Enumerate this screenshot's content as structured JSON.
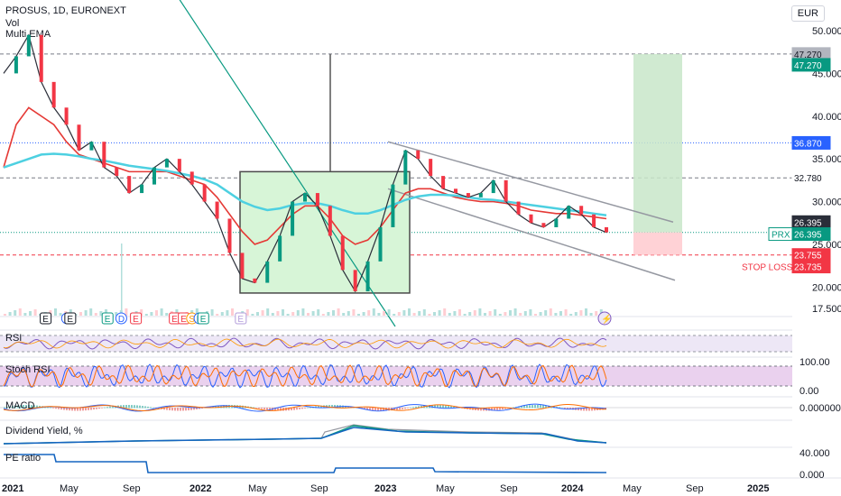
{
  "header": {
    "symbol_line": "PROSUS, 1D, EURONEXT",
    "vol_label": "Vol",
    "ema_label": "Multi EMA",
    "currency": "EUR"
  },
  "chart_data": {
    "type": "line",
    "x_ticks": [
      "2021",
      "May",
      "Sep",
      "2022",
      "May",
      "Sep",
      "2023",
      "May",
      "Sep",
      "2024",
      "May",
      "Sep",
      "2025"
    ],
    "price_ticks": [
      "50.000",
      "45.000",
      "40.000",
      "35.000",
      "30.000",
      "25.000",
      "20.000",
      "17.500"
    ],
    "ylim": [
      17.5,
      50
    ],
    "price_series": {
      "name": "",
      "values": [
        45.0,
        47.0,
        49.5,
        44.0,
        41.0,
        39.0,
        36.0,
        37.0,
        34.0,
        33.0,
        31.0,
        32.0,
        34.0,
        35.0,
        33.5,
        32.0,
        30.0,
        28.0,
        24.0,
        21.0,
        20.5,
        23.0,
        26.0,
        30.0,
        31.0,
        29.5,
        26.0,
        22.0,
        19.5,
        23.0,
        27.0,
        32.0,
        36.0,
        35.0,
        33.0,
        31.5,
        31.0,
        30.5,
        31.0,
        32.5,
        30.0,
        28.5,
        27.5,
        27.0,
        28.0,
        29.5,
        28.5,
        27.0,
        26.4
      ]
    },
    "ema_series": [
      {
        "color": "#e53935",
        "values": [
          34,
          39,
          41,
          40,
          39,
          37,
          35.5,
          35,
          34.5,
          34,
          33.5,
          33.5,
          33.5,
          33.5,
          33,
          32.5,
          32,
          30.5,
          28.5,
          26.5,
          25,
          25.5,
          27,
          28.5,
          29.5,
          29.5,
          28,
          26,
          25,
          25.5,
          27,
          29,
          31,
          31.5,
          31.5,
          31,
          30.5,
          30.2,
          30,
          30,
          29.8,
          29.5,
          29,
          28.8,
          28.6,
          28.6,
          28.4,
          28.2,
          28
        ]
      },
      {
        "color": "#4dd0e1",
        "values": [
          34,
          34.5,
          35,
          35.5,
          35.6,
          35.5,
          35.3,
          35,
          34.8,
          34.5,
          34.2,
          34,
          33.8,
          33.6,
          33.3,
          33,
          32.6,
          32,
          31,
          30,
          29.4,
          29,
          29.2,
          29.6,
          29.8,
          29.8,
          29.5,
          29,
          28.6,
          28.6,
          29,
          29.6,
          30.2,
          30.6,
          30.8,
          30.8,
          30.7,
          30.5,
          30.3,
          30.2,
          30,
          29.8,
          29.6,
          29.4,
          29.2,
          29,
          28.8,
          28.6,
          28.4
        ]
      }
    ],
    "price_tags": [
      {
        "label": "47.270",
        "value": 47.27,
        "bg": "#b2b5be",
        "fg": "#131722"
      },
      {
        "label": "47.270",
        "value": 46.0,
        "bg": "#089981",
        "fg": "#ffffff"
      },
      {
        "label": "36.870",
        "value": 36.87,
        "bg": "#2962ff",
        "fg": "#ffffff"
      },
      {
        "label": "32.780",
        "value": 32.78,
        "bg": "#ffffff",
        "fg": "#131722"
      },
      {
        "label": "26.395",
        "value": 27.6,
        "bg": "#2a2e39",
        "fg": "#ffffff"
      },
      {
        "label": "26.395",
        "value": 26.2,
        "bg": "#089981",
        "fg": "#ffffff"
      },
      {
        "label": "23.755",
        "value": 23.755,
        "bg": "#f23645",
        "fg": "#ffffff"
      },
      {
        "label": "23.735",
        "value": 22.4,
        "bg": "#f23645",
        "fg": "#ffffff"
      }
    ],
    "prx_label": "PRX",
    "stop_loss_label": "STOP LOSS",
    "levels": [
      {
        "value": 47.27,
        "color": "#787b86",
        "style": "dashed"
      },
      {
        "value": 36.87,
        "color": "#2962ff",
        "style": "dotted"
      },
      {
        "value": 32.78,
        "color": "#787b86",
        "style": "dashed"
      },
      {
        "value": 26.395,
        "color": "#089981",
        "style": "dotted"
      },
      {
        "value": 23.755,
        "color": "#f23645",
        "style": "dashed"
      }
    ],
    "event_markers": [
      {
        "label": "E",
        "color": "#131722",
        "tx": 0.205
      },
      {
        "label": "D",
        "color": "#2962ff",
        "tx": 0.319
      },
      {
        "label": "E",
        "color": "#131722",
        "tx": 0.336
      },
      {
        "label": "E",
        "color": "#089981",
        "tx": 0.535
      },
      {
        "label": "D",
        "color": "#2962ff",
        "tx": 0.608
      },
      {
        "label": "E",
        "color": "#f23645",
        "tx": 0.686
      },
      {
        "label": "E",
        "color": "#f23645",
        "tx": 0.893
      },
      {
        "label": "E",
        "color": "#f23645",
        "tx": 0.941
      },
      {
        "label": "S",
        "color": "#ff9800",
        "tx": 0.985
      },
      {
        "label": "D",
        "color": "#2962ff",
        "tx": 1.025
      },
      {
        "label": "E",
        "color": "#089981",
        "tx": 1.045
      },
      {
        "label": "E",
        "color": "#b39ddb",
        "tx": 1.245
      }
    ],
    "rsi": {
      "label": "RSI"
    },
    "stoch": {
      "label": "Stoch RSI",
      "ticks": [
        "100.00",
        "0.00"
      ]
    },
    "macd": {
      "label": "MACD",
      "ticks": [
        "0.000000"
      ]
    },
    "dividend": {
      "label": "Dividend Yield, %"
    },
    "pe": {
      "label": "PE ratio",
      "ticks": [
        "40.000",
        "0.000"
      ]
    }
  }
}
